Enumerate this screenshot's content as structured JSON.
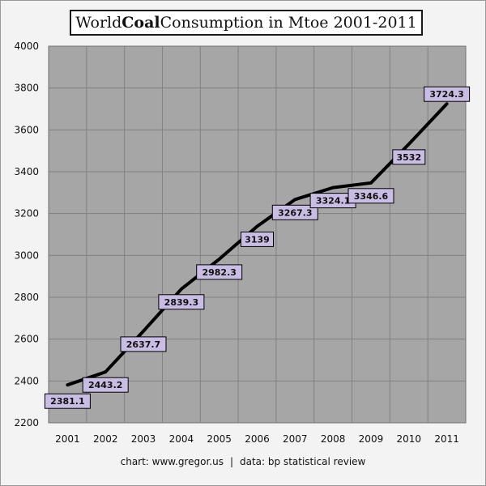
{
  "title": {
    "before": "World ",
    "bold": "Coal",
    "after": " Consumption in Mtoe 2001-2011"
  },
  "footer": {
    "credit": "chart: www.gregor.us",
    "separator": "|",
    "source": "data: bp statistical review"
  },
  "colors": {
    "plot_background": "#a6a6a6",
    "grid": "#808080",
    "line": "#000000",
    "label_fill": "#c9bde3",
    "label_border": "#000000",
    "page_background": "#f3f3f3"
  },
  "chart_data": {
    "type": "line",
    "title": "World Coal Consumption in Mtoe 2001-2011",
    "xlabel": "",
    "ylabel": "",
    "categories": [
      "2001",
      "2002",
      "2003",
      "2004",
      "2005",
      "2006",
      "2007",
      "2008",
      "2009",
      "2010",
      "2011"
    ],
    "series": [
      {
        "values": [
          2381.1,
          2443.2,
          2637.7,
          2839.3,
          2982.3,
          3139,
          3267.3,
          3324.1,
          3346.6,
          3532,
          3724.3
        ]
      }
    ],
    "data_labels": [
      "2381.1",
      "2443.2",
      "2637.7",
      "2839.3",
      "2982.3",
      "3139",
      "3267.3",
      "3324.1",
      "3346.6",
      "3532",
      "3724.3"
    ],
    "ylim": [
      2200,
      4000
    ],
    "yticks": [
      2200,
      2400,
      2600,
      2800,
      3000,
      3200,
      3400,
      3600,
      3800,
      4000
    ],
    "grid": true,
    "legend": false
  }
}
